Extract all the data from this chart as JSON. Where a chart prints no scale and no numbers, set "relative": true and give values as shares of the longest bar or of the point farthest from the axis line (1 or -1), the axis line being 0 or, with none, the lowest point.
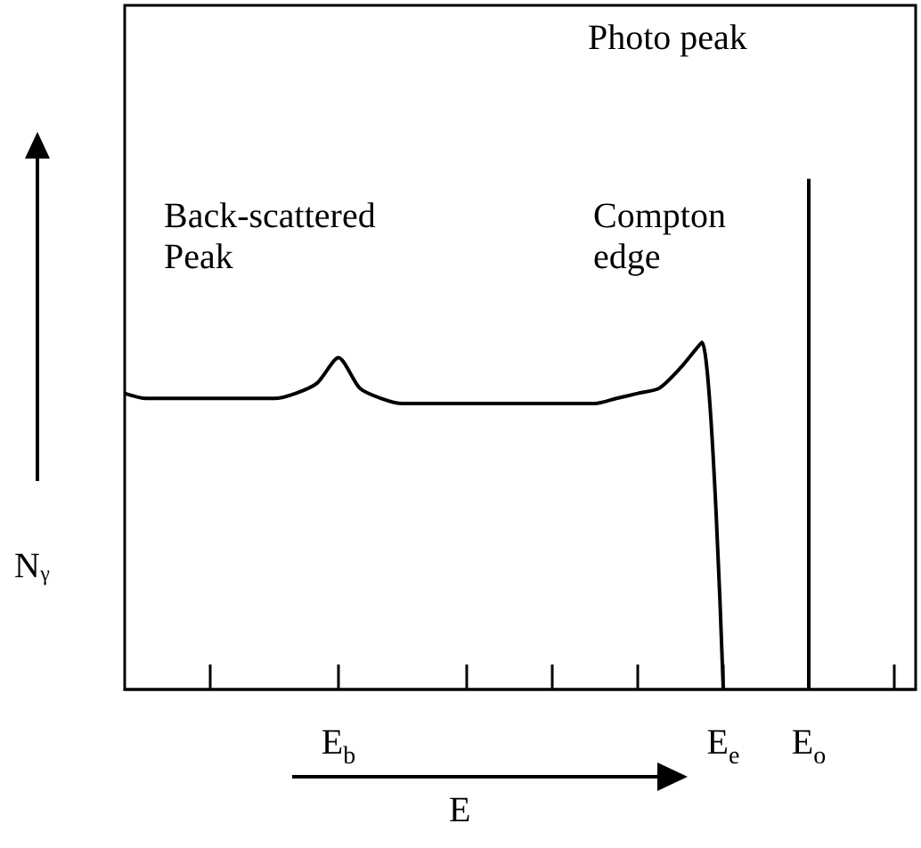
{
  "chart_data": {
    "type": "line",
    "relative": true,
    "xlabel": "E",
    "ylabel": "Nᵧ",
    "annotations": [
      "Photo peak",
      "Back-scattered\nPeak",
      "Compton\nedge"
    ],
    "categories": [
      null,
      null,
      null,
      null,
      null,
      null,
      null,
      null,
      null,
      null,
      "E$_{b}$",
      null,
      null,
      null,
      null,
      null,
      null,
      null,
      null,
      null,
      null,
      null,
      null,
      null,
      null,
      null,
      null,
      null,
      "E$_{e}$",
      null,
      null,
      null,
      "E$_{o}$",
      null,
      null,
      null,
      null,
      null
    ],
    "series": [
      {
        "color": "#000000",
        "values": [
          0.58,
          0.57,
          0.57,
          0.57,
          0.57,
          0.57,
          0.57,
          0.57,
          0.58,
          0.6,
          0.65,
          0.59,
          0.57,
          0.56,
          0.56,
          0.56,
          0.56,
          0.56,
          0.56,
          0.56,
          0.56,
          0.56,
          0.56,
          0.57,
          0.58,
          0.59,
          0.63,
          0.68,
          0,
          null,
          null,
          null,
          null,
          null,
          null,
          null,
          null,
          null
        ]
      },
      {
        "type": "bar",
        "color": "#000000",
        "values": [
          null,
          null,
          null,
          null,
          null,
          null,
          null,
          null,
          null,
          null,
          null,
          null,
          null,
          null,
          null,
          null,
          null,
          null,
          null,
          null,
          null,
          null,
          null,
          null,
          null,
          null,
          null,
          null,
          null,
          null,
          null,
          null,
          1,
          null,
          null,
          null,
          null,
          null
        ]
      }
    ]
  }
}
